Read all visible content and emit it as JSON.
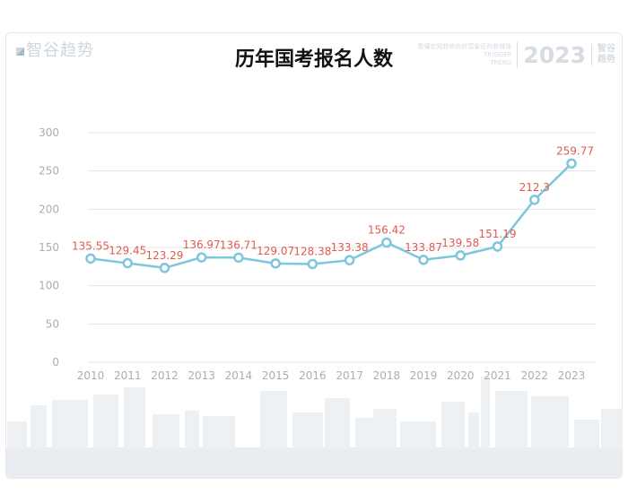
{
  "brand": {
    "name": "智谷趋势"
  },
  "watermark": {
    "tagline": "看懂宏观趋势的财富象征的新媒体",
    "english_top": "TRIGGER",
    "english_bottom": "TREND",
    "year": "2023",
    "badge_top": "智谷",
    "badge_bottom": "趋势"
  },
  "colors": {
    "line": "#7ec6dc",
    "marker_fill": "#ffffff",
    "data_label": "#e05b4f",
    "grid": "#e4e6e9",
    "tick": "#a8aeb4",
    "skyline": "#eef1f4"
  },
  "chart_data": {
    "type": "line",
    "title": "历年国考报名人数",
    "xlabel": "",
    "ylabel": "",
    "x": [
      "2010",
      "2011",
      "2012",
      "2013",
      "2014",
      "2015",
      "2016",
      "2017",
      "2018",
      "2019",
      "2020",
      "2021",
      "2022",
      "2023"
    ],
    "values": [
      135.55,
      129.45,
      123.29,
      136.97,
      136.71,
      129.07,
      128.38,
      133.38,
      156.42,
      133.87,
      139.58,
      151.19,
      212.3,
      259.77
    ],
    "data_labels": [
      "135.55",
      "129.45",
      "123.29",
      "136.97",
      "136.71",
      "129.07",
      "128.38",
      "133.38",
      "156.42",
      "133.87",
      "139.58",
      "151.19",
      "212.3",
      "259.77"
    ],
    "ylim": [
      0,
      300
    ],
    "yticks": [
      "0",
      "50",
      "100",
      "150",
      "200",
      "250",
      "300"
    ],
    "grid": true,
    "legend": "none"
  }
}
